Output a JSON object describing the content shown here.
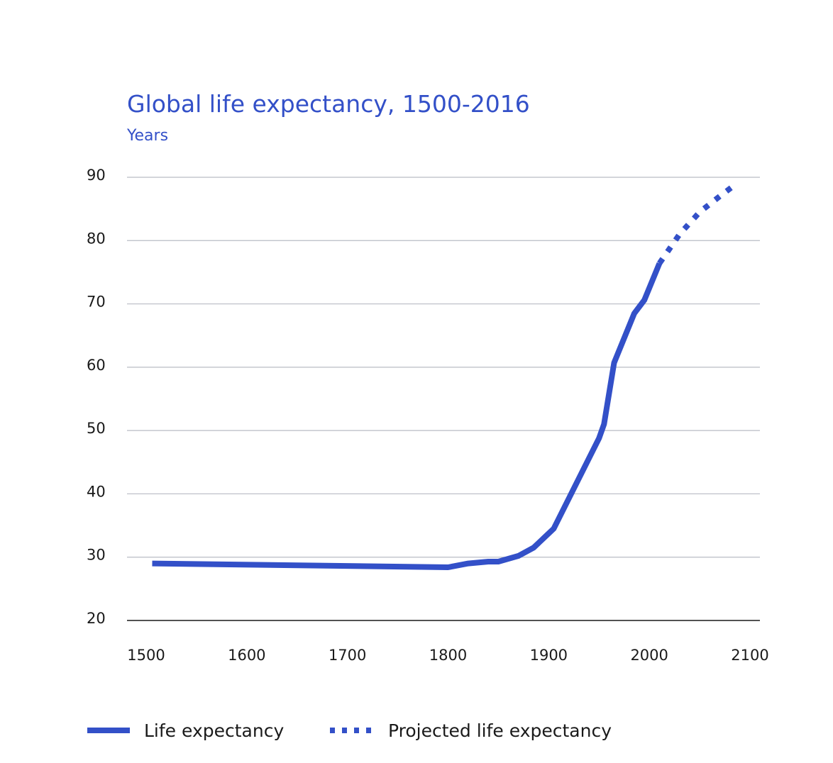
{
  "chart_data": {
    "type": "line",
    "title": "Global life expectancy, 1500-2016",
    "subtitle": "Years",
    "xlabel": "",
    "ylabel": "Years",
    "xlim": [
      1500,
      2100
    ],
    "ylim": [
      20,
      90
    ],
    "x_ticks": [
      1500,
      1600,
      1700,
      1800,
      1900,
      2000,
      2100
    ],
    "y_ticks": [
      20,
      30,
      40,
      50,
      60,
      70,
      80,
      90
    ],
    "grid": true,
    "legend_position": "bottom",
    "colors": {
      "accent": "#3350c8",
      "grid": "#b9bcc4",
      "text": "#1a1a1a"
    },
    "series": [
      {
        "name": "Life expectancy",
        "style": "solid",
        "x": [
          1506,
          1800,
          1820,
          1840,
          1850,
          1870,
          1885,
          1905,
          1950,
          1955,
          1965,
          1985,
          1995,
          2010
        ],
        "y": [
          29.0,
          28.4,
          29.0,
          29.3,
          29.3,
          30.2,
          31.5,
          34.5,
          48.8,
          51,
          60.7,
          68.5,
          70.6,
          76.4
        ]
      },
      {
        "name": "Projected life expectancy",
        "style": "dotted",
        "x": [
          2010,
          2030,
          2050,
          2070,
          2085
        ],
        "y": [
          76.4,
          81,
          84.5,
          87,
          88.8
        ]
      }
    ]
  }
}
